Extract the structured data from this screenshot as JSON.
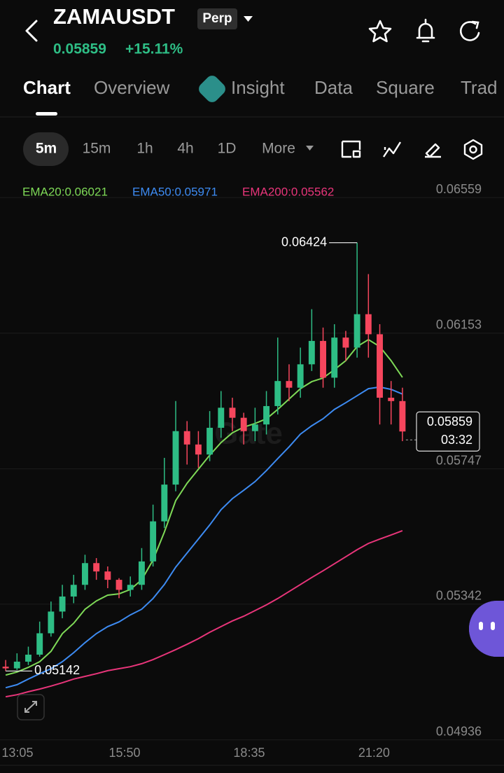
{
  "header": {
    "symbol": "ZAMAUSDT",
    "badge": "Perp",
    "price": "0.05859",
    "change": "+15.11%"
  },
  "tabs": [
    "Chart",
    "Overview",
    "Insight",
    "Data",
    "Square",
    "Trad"
  ],
  "timeframes": [
    "5m",
    "15m",
    "1h",
    "4h",
    "1D",
    "More"
  ],
  "chart_data": {
    "type": "candlestick",
    "watermark": "Gate",
    "countdown": "03:32",
    "ylim": [
      0.04929,
      0.06616
    ],
    "yticks": [
      0.06559,
      0.06153,
      0.05747,
      0.05342,
      0.04936
    ],
    "xlim": [
      -0.5,
      35.5
    ],
    "xticks": [
      {
        "value": 1.04,
        "label": "13:05"
      },
      {
        "value": 10.49,
        "label": "15:50"
      },
      {
        "value": 21.48,
        "label": "18:35"
      },
      {
        "value": 32.5,
        "label": "21:20"
      }
    ],
    "up_color": "#2ebd85",
    "down_color": "#f6465d",
    "open": [
      0.05155,
      0.0515,
      0.0517,
      0.05191,
      0.05255,
      0.0532,
      0.05365,
      0.054,
      0.05465,
      0.0544,
      0.05415,
      0.05385,
      0.054,
      0.0547,
      0.0559,
      0.057,
      0.0586,
      0.0582,
      0.0579,
      0.0587,
      0.0593,
      0.059,
      0.0586,
      0.0588,
      0.05935,
      0.0601,
      0.0599,
      0.0606,
      0.0613,
      0.0602,
      0.0614,
      0.0611,
      0.0621,
      0.0615,
      0.0596,
      0.0595
    ],
    "high": [
      0.05175,
      0.05195,
      0.05215,
      0.0529,
      0.0535,
      0.054,
      0.0543,
      0.0549,
      0.0548,
      0.05455,
      0.0542,
      0.05425,
      0.0551,
      0.0564,
      0.0578,
      0.0595,
      0.0589,
      0.0586,
      0.0592,
      0.0598,
      0.0596,
      0.05915,
      0.0593,
      0.0598,
      0.0614,
      0.0606,
      0.0611,
      0.06225,
      0.0617,
      0.0618,
      0.0616,
      0.06424,
      0.0633,
      0.0618,
      0.0601,
      0.0599
    ],
    "low": [
      0.05142,
      0.05145,
      0.0516,
      0.05185,
      0.05245,
      0.053,
      0.05345,
      0.05385,
      0.05415,
      0.0539,
      0.0536,
      0.05365,
      0.05385,
      0.05455,
      0.0557,
      0.0568,
      0.0576,
      0.0575,
      0.0577,
      0.0584,
      0.0586,
      0.0582,
      0.0583,
      0.0585,
      0.0591,
      0.0595,
      0.0596,
      0.0604,
      0.0599,
      0.0599,
      0.0607,
      0.0608,
      0.0608,
      0.0588,
      0.0588,
      0.0583
    ],
    "close": [
      0.0515,
      0.0517,
      0.05191,
      0.05255,
      0.0532,
      0.05365,
      0.054,
      0.05465,
      0.0544,
      0.05415,
      0.05385,
      0.054,
      0.0547,
      0.0559,
      0.057,
      0.0586,
      0.0582,
      0.0579,
      0.0587,
      0.0593,
      0.059,
      0.0586,
      0.0588,
      0.05935,
      0.0601,
      0.0599,
      0.0606,
      0.0613,
      0.0602,
      0.0614,
      0.0611,
      0.0621,
      0.0615,
      0.0596,
      0.0595,
      0.05859
    ],
    "series": [
      {
        "name": "EMA20:0.06021",
        "color": "#7ed957",
        "values": [
          0.0513,
          0.05139,
          0.05153,
          0.0517,
          0.05201,
          0.05254,
          0.05285,
          0.05327,
          0.05352,
          0.05369,
          0.05373,
          0.05386,
          0.05415,
          0.05474,
          0.05558,
          0.05652,
          0.05704,
          0.05746,
          0.05788,
          0.05826,
          0.05855,
          0.05872,
          0.05883,
          0.05897,
          0.05925,
          0.05956,
          0.05987,
          0.06008,
          0.06019,
          0.06044,
          0.06071,
          0.06113,
          0.06134,
          0.06113,
          0.06071,
          0.06021
        ]
      },
      {
        "name": "EMA50:0.05971",
        "color": "#3d8bf2",
        "values": [
          0.05092,
          0.05101,
          0.05118,
          0.05134,
          0.05149,
          0.0517,
          0.05197,
          0.05227,
          0.05254,
          0.05275,
          0.05289,
          0.0531,
          0.05327,
          0.05359,
          0.05401,
          0.05453,
          0.05495,
          0.05537,
          0.05579,
          0.05625,
          0.05658,
          0.05683,
          0.05709,
          0.05742,
          0.05778,
          0.05813,
          0.05851,
          0.05876,
          0.05897,
          0.05925,
          0.05945,
          0.05966,
          0.05987,
          0.05992,
          0.05985,
          0.05971
        ]
      },
      {
        "name": "EMA200:0.05562",
        "color": "#e8357a",
        "values": [
          0.05065,
          0.05071,
          0.0508,
          0.05088,
          0.05097,
          0.05107,
          0.05118,
          0.05126,
          0.05134,
          0.05143,
          0.05149,
          0.05155,
          0.05164,
          0.05176,
          0.05191,
          0.05206,
          0.05222,
          0.05239,
          0.05258,
          0.05275,
          0.05292,
          0.05306,
          0.05323,
          0.0534,
          0.05359,
          0.0538,
          0.05401,
          0.05422,
          0.05442,
          0.05463,
          0.05484,
          0.05505,
          0.05524,
          0.05537,
          0.05549,
          0.05562
        ]
      }
    ]
  }
}
